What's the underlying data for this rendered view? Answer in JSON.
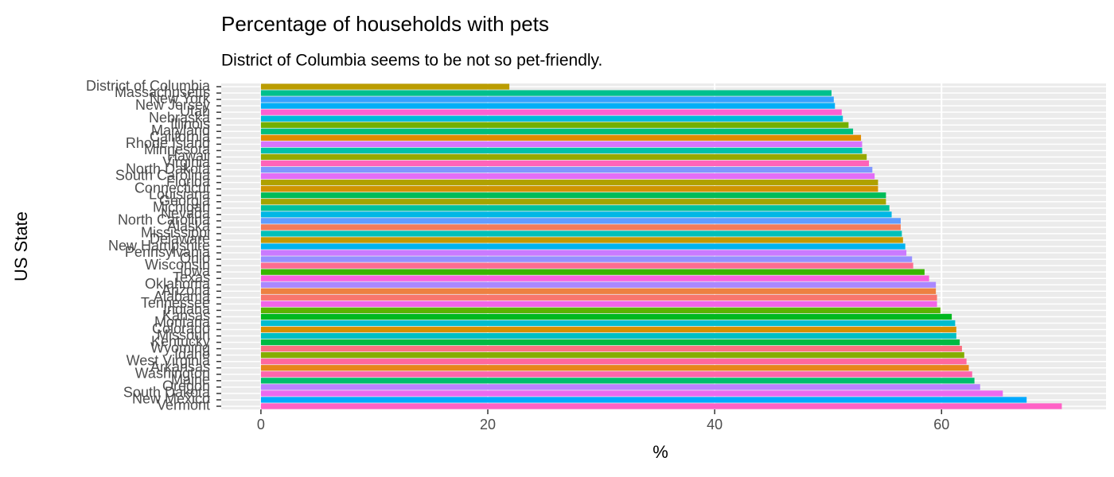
{
  "chart_data": {
    "type": "barh",
    "title": "Percentage of households with pets",
    "subtitle": "District of Columbia seems to be not so pet-friendly.",
    "xlabel": "%",
    "ylabel": "US State",
    "categories": [
      "District of Columbia",
      "Massachusetts",
      "New York",
      "New Jersey",
      "Utah",
      "Nebraska",
      "Illinois",
      "Maryland",
      "California",
      "Rhode Island",
      "Minnesota",
      "Hawaii",
      "Virginia",
      "North Dakota",
      "South Carolina",
      "Florida",
      "Connecticut",
      "Louisiana",
      "Georgia",
      "Michigan",
      "Nevada",
      "North Carolina",
      "Alaska",
      "Mississippi",
      "Delaware",
      "New Hampshire",
      "Pennsylvania",
      "Ohio",
      "Wisconsin",
      "Iowa",
      "Texas",
      "Oklahoma",
      "Arizona",
      "Alabama",
      "Tennessee",
      "Indiana",
      "Kansas",
      "Montana",
      "Colorado",
      "Missouri",
      "Kentucky",
      "Wyoming",
      "Idaho",
      "West Virginia",
      "Arkansas",
      "Washington",
      "Maine",
      "Oregon",
      "South Dakota",
      "New Mexico",
      "Vermont"
    ],
    "values": [
      21.9,
      50.3,
      50.5,
      50.6,
      51.2,
      51.3,
      51.8,
      52.2,
      52.9,
      53.0,
      53.0,
      53.4,
      53.6,
      53.9,
      54.1,
      54.4,
      54.4,
      55.1,
      55.1,
      55.4,
      55.6,
      56.4,
      56.4,
      56.5,
      56.6,
      56.8,
      56.9,
      57.4,
      57.5,
      58.5,
      58.9,
      59.5,
      59.5,
      59.6,
      59.6,
      59.9,
      60.9,
      61.2,
      61.3,
      61.3,
      61.6,
      61.8,
      62.0,
      62.2,
      62.4,
      62.7,
      62.9,
      63.4,
      65.4,
      67.5,
      70.6
    ],
    "colors": [
      "#BB9D00",
      "#00C08D",
      "#35A2FF",
      "#00AEF7",
      "#FD61D2",
      "#00BADB",
      "#72B000",
      "#00BF7D",
      "#E08B00",
      "#D774FD",
      "#00C1AA",
      "#95A900",
      "#FF63B9",
      "#7F96FF",
      "#E26EF7",
      "#AFA100",
      "#CF9400",
      "#00BC59",
      "#A3A500",
      "#00C19C",
      "#00B7E5",
      "#619CFF",
      "#F37B59",
      "#00C0B8",
      "#C59900",
      "#00B3EF",
      "#CA7AFF",
      "#968FFF",
      "#FD6C90",
      "#39B600",
      "#F962DD",
      "#AA88FF",
      "#ED8141",
      "#F8766D",
      "#F364E7",
      "#5BB300",
      "#00B81F",
      "#00BDD0",
      "#D89000",
      "#00BFC4",
      "#00BA42",
      "#FA7080",
      "#85AD00",
      "#FF689E",
      "#E7861B",
      "#FF65AC",
      "#00BE6C",
      "#BB81FF",
      "#EB69F0",
      "#00A9FF",
      "#FF61C6"
    ],
    "xlim": [
      -3.5,
      74.5
    ],
    "xticks": [
      0,
      20,
      40,
      60
    ],
    "grid": true
  }
}
